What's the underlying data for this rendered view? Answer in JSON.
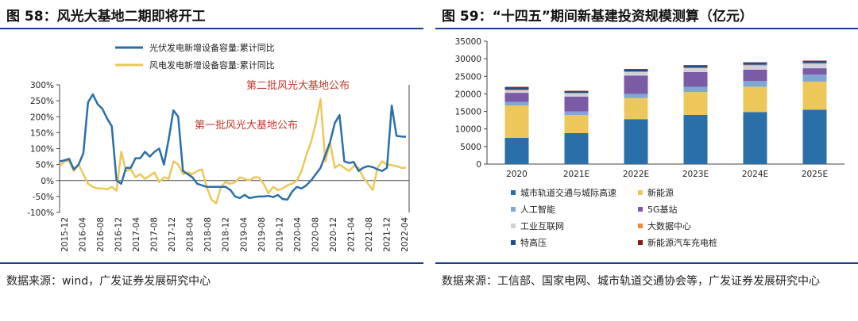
{
  "left": {
    "title": "图 58：风光大基地二期即将开工",
    "source": "数据来源：wind，广发证券发展研究中心",
    "colors": {
      "solar": "#2a6fa8",
      "wind": "#ecc85a",
      "annotation": "#c0392b"
    },
    "chart_data": {
      "type": "line",
      "title": "风光大基地二期即将开工",
      "y_tick_labels": [
        "300%",
        "250%",
        "200%",
        "150%",
        "100%",
        "50%",
        "0%",
        "-50%",
        "-100%"
      ],
      "y_ticks": [
        300,
        250,
        200,
        150,
        100,
        50,
        0,
        -50,
        -100
      ],
      "ylim": [
        -100,
        300
      ],
      "x_labels": [
        "2015-12",
        "2016-04",
        "2016-08",
        "2016-12",
        "2017-04",
        "2017-08",
        "2017-12",
        "2018-04",
        "2018-08",
        "2018-12",
        "2019-04",
        "2019-08",
        "2019-12",
        "2020-04",
        "2020-08",
        "2020-12",
        "2021-04",
        "2021-08",
        "2021-12",
        "2022-04"
      ],
      "legend": [
        "光伏发电新增设备容量:累计同比",
        "风电发电新增设备容量:累计同比"
      ],
      "annotations": [
        "第二批风光大基地公布",
        "第一批风光大基地公布"
      ],
      "series": [
        {
          "name": "光伏发电新增设备容量:累计同比",
          "values": [
            60,
            63,
            68,
            35,
            50,
            85,
            245,
            270,
            240,
            225,
            195,
            170,
            0,
            -10,
            40,
            40,
            70,
            70,
            90,
            75,
            90,
            100,
            50,
            130,
            220,
            200,
            30,
            20,
            10,
            -10,
            -15,
            -20,
            -20,
            -20,
            -20,
            -20,
            -30,
            -50,
            -55,
            -45,
            -55,
            -52,
            -50,
            -50,
            -48,
            -52,
            -45,
            -58,
            -60,
            -35,
            -20,
            -25,
            -15,
            0,
            20,
            40,
            80,
            120,
            180,
            205,
            60,
            55,
            58,
            30,
            40,
            45,
            42,
            35,
            30,
            40,
            235,
            140,
            138,
            137
          ]
        },
        {
          "name": "风电发电新增设备容量:累计同比",
          "values": [
            45,
            60,
            62,
            30,
            50,
            20,
            -10,
            -20,
            -25,
            -25,
            -28,
            -20,
            -32,
            90,
            30,
            35,
            10,
            20,
            5,
            15,
            25,
            -5,
            10,
            5,
            60,
            50,
            20,
            25,
            20,
            30,
            35,
            -20,
            -60,
            -72,
            -20,
            -5,
            -10,
            -5,
            10,
            5,
            0,
            10,
            10,
            -10,
            -40,
            -20,
            -30,
            -25,
            -15,
            -10,
            0,
            30,
            80,
            120,
            180,
            255,
            60,
            120,
            40,
            50,
            40,
            30,
            45,
            40,
            10,
            -10,
            -30,
            40,
            60,
            50,
            48,
            45,
            40,
            40
          ]
        }
      ]
    }
  },
  "right": {
    "title": "图 59：“十四五”期间新基建投资规模测算（亿元）",
    "source": "数据来源：工信部、国家电网、城市轨道交通协会等，广发证券发展研究中心",
    "chart_data": {
      "type": "bar",
      "stacked": true,
      "title": "“十四五”期间新基建投资规模测算（亿元）",
      "categories": [
        "2020",
        "2021E",
        "2022E",
        "2023E",
        "2024E",
        "2025E"
      ],
      "y_tick_labels": [
        "35000",
        "30000",
        "25000",
        "20000",
        "15000",
        "10000",
        "5000",
        "0"
      ],
      "y_ticks": [
        35000,
        30000,
        25000,
        20000,
        15000,
        10000,
        5000,
        0
      ],
      "ylim": [
        0,
        35000
      ],
      "series": [
        {
          "name": "城市轨道交通与城际高速",
          "color": "#2a6fa8",
          "values": [
            7500,
            8800,
            12800,
            14000,
            14800,
            15500
          ]
        },
        {
          "name": "新能源",
          "color": "#ecc85a",
          "values": [
            9200,
            5200,
            6000,
            6500,
            7200,
            8000
          ]
        },
        {
          "name": "人工智能",
          "color": "#7fa7d2",
          "values": [
            1000,
            1000,
            1200,
            1500,
            1700,
            2000
          ]
        },
        {
          "name": "5G基站",
          "color": "#7b5aa6",
          "values": [
            2600,
            4200,
            5200,
            4200,
            3200,
            1800
          ]
        },
        {
          "name": "工业互联网",
          "color": "#cfd2d6",
          "values": [
            700,
            900,
            1000,
            1100,
            1200,
            1300
          ]
        },
        {
          "name": "大数据中心",
          "color": "#ef8a3b",
          "values": [
            200,
            200,
            200,
            200,
            200,
            200
          ]
        },
        {
          "name": "特高压",
          "color": "#1f4f86",
          "values": [
            700,
            500,
            600,
            600,
            600,
            600
          ]
        },
        {
          "name": "新能源汽车充电桩",
          "color": "#8b1a1a",
          "values": [
            100,
            100,
            100,
            100,
            100,
            100
          ]
        }
      ]
    }
  }
}
